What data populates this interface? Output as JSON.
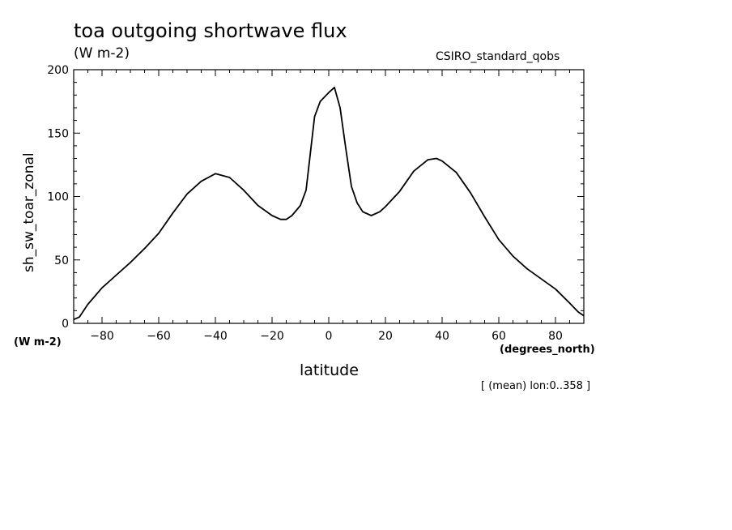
{
  "chart_data": {
    "type": "line",
    "title": "toa outgoing shortwave flux",
    "units_label": "(W m-2)",
    "source_label": "CSIRO_standard_qobs",
    "xlabel": "latitude",
    "xunits": "(degrees_north)",
    "ylabel": "sh_sw_toar_zonal",
    "yunits": "(W m-2)",
    "note": "[ (mean) lon:0..358 ]",
    "xlim": [
      -90,
      90
    ],
    "ylim": [
      0,
      200
    ],
    "xticks": [
      -80,
      -60,
      -40,
      -20,
      0,
      20,
      40,
      60,
      80
    ],
    "yticks": [
      0,
      50,
      100,
      150,
      200
    ],
    "grid": false,
    "line_color": "#000000",
    "series": [
      {
        "x": [
          -90,
          -88,
          -85,
          -80,
          -75,
          -70,
          -65,
          -60,
          -55,
          -50,
          -45,
          -40,
          -35,
          -30,
          -25,
          -20,
          -17,
          -15,
          -13,
          -10,
          -8,
          -5,
          -3,
          0,
          2,
          4,
          6,
          8,
          10,
          12,
          15,
          18,
          20,
          25,
          30,
          35,
          38,
          40,
          45,
          50,
          55,
          60,
          65,
          70,
          75,
          80,
          85,
          88,
          90
        ],
        "y": [
          3,
          5,
          15,
          28,
          38,
          48,
          59,
          71,
          87,
          102,
          112,
          118,
          115,
          105,
          93,
          85,
          82,
          82,
          85,
          93,
          105,
          163,
          175,
          182,
          186,
          170,
          138,
          108,
          95,
          88,
          85,
          88,
          92,
          104,
          120,
          129,
          130,
          128,
          119,
          103,
          84,
          66,
          53,
          43,
          35,
          27,
          16,
          9,
          6
        ]
      }
    ]
  }
}
